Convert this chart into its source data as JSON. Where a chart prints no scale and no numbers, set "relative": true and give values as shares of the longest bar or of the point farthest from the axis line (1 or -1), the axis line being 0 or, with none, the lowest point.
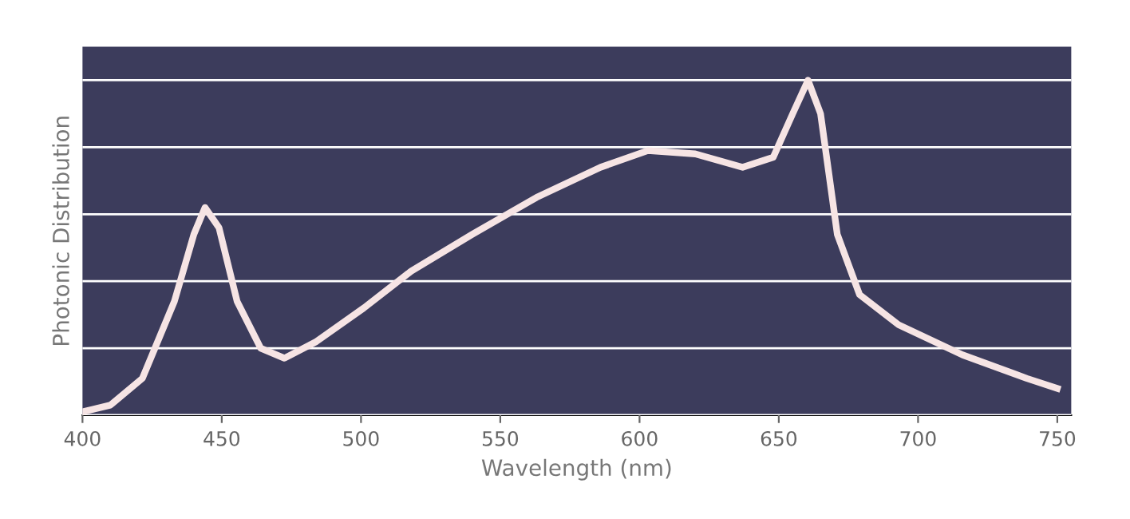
{
  "chart_data": {
    "type": "line",
    "relative": true,
    "xlabel": "Wavelength (nm)",
    "ylabel": "Photonic Distribution",
    "x": [
      400,
      410,
      421.5,
      433,
      440,
      444,
      449,
      455.5,
      464,
      472.5,
      484,
      501,
      518,
      540,
      563,
      586,
      603,
      620,
      637,
      648,
      655,
      660.5,
      665,
      671,
      679,
      693,
      716,
      739,
      750
    ],
    "series": [
      {
        "color": "#f6e4e4",
        "values": [
          0.01,
          0.03,
          0.11,
          0.34,
          0.54,
          0.62,
          0.56,
          0.34,
          0.2,
          0.17,
          0.22,
          0.32,
          0.43,
          0.54,
          0.65,
          0.74,
          0.79,
          0.78,
          0.74,
          0.77,
          0.9,
          1.0,
          0.9,
          0.54,
          0.36,
          0.27,
          0.18,
          0.11,
          0.08
        ]
      }
    ],
    "xlim": [
      400,
      755
    ],
    "xticks": [
      400,
      450,
      500,
      550,
      600,
      650,
      700,
      750
    ],
    "grid": "y",
    "marker": "none",
    "line_style": "solid"
  }
}
